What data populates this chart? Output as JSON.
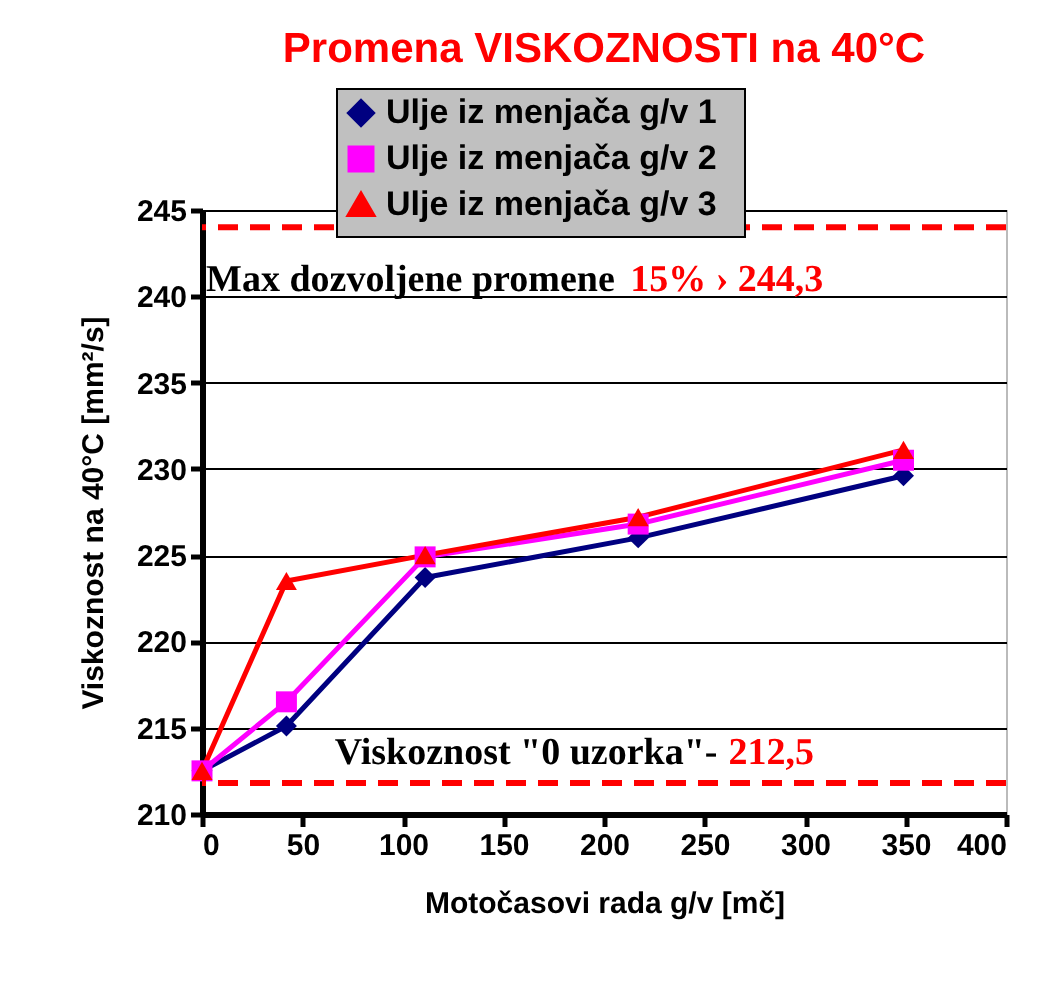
{
  "chart_data": {
    "type": "line",
    "title": "Promena VISKOZNOSTI na 40°C",
    "xlabel": "Motočasovi  rada  g/v [mč]",
    "ylabel": "Viskoznost na     40°C [mm²/s]",
    "x": [
      0,
      42,
      111,
      217,
      349
    ],
    "series": [
      {
        "name": "Ulje iz  menjača  g/v 1",
        "color": "#000080",
        "marker": "diamond",
        "values": [
          212.5,
          215.1,
          223.7,
          226.0,
          229.6
        ]
      },
      {
        "name": "Ulje iz  menjača  g/v 2",
        "color": "#ff00ff",
        "marker": "square",
        "values": [
          212.5,
          216.5,
          224.9,
          226.8,
          230.5
        ]
      },
      {
        "name": "Ulje iz  menjača  g/v 3",
        "color": "#ff0000",
        "marker": "triangle",
        "values": [
          212.5,
          223.5,
          225.0,
          227.2,
          231.1
        ]
      }
    ],
    "xlim": [
      0,
      400
    ],
    "xticks": [
      0,
      50,
      100,
      150,
      200,
      250,
      300,
      350,
      400
    ],
    "ylim": [
      210,
      245
    ],
    "yticks": [
      210,
      215,
      220,
      225,
      230,
      235,
      240,
      245
    ],
    "ref_lines": [
      {
        "axis": "y",
        "value": 244.0,
        "color": "#ff0000",
        "line_style": "dashed"
      },
      {
        "axis": "y",
        "value": 211.8,
        "color": "#ff0000",
        "line_style": "dashed"
      }
    ],
    "annotations": [
      "Max dozvoljene promene",
      "15% ›    244,3",
      "Viskoznost \"0 uzorka\"-",
      "212,5"
    ],
    "grid": "y",
    "legend": "top",
    "line_style": "solid"
  }
}
